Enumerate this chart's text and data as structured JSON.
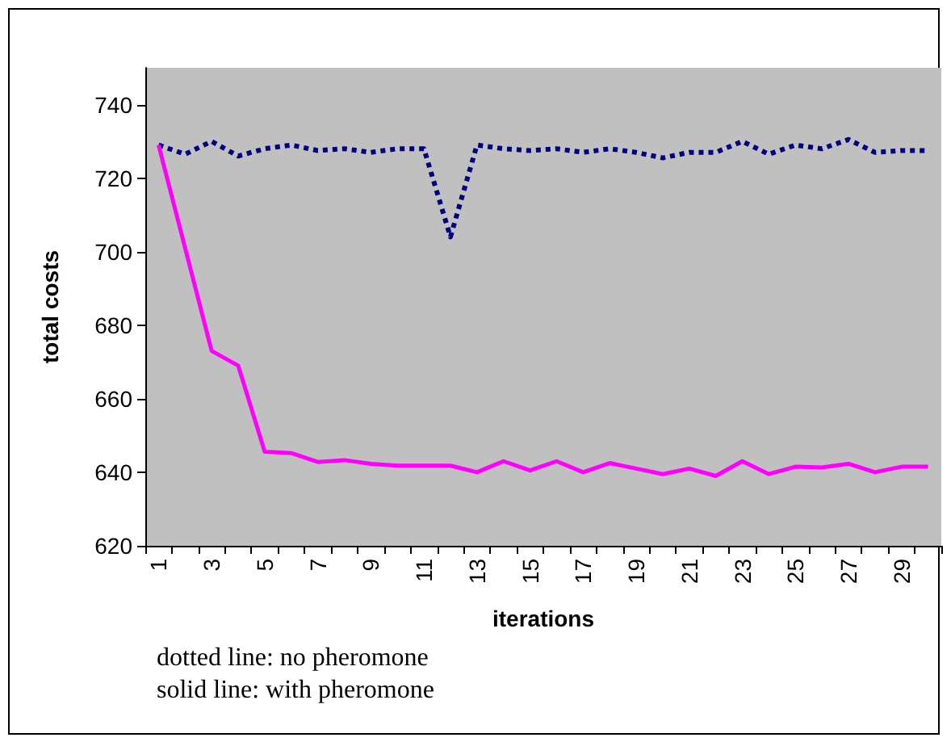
{
  "chart_data": {
    "type": "line",
    "xlabel": "iterations",
    "ylabel": "total costs",
    "categories": [
      "1",
      null,
      "3",
      null,
      "5",
      null,
      "7",
      null,
      "9",
      null,
      "11",
      null,
      "13",
      null,
      "15",
      null,
      "17",
      null,
      "19",
      null,
      "21",
      null,
      "23",
      null,
      "25",
      null,
      "27",
      null,
      "29",
      null
    ],
    "series": [
      {
        "color": "#000080",
        "line_style": "dotted",
        "values": [
          729,
          726.5,
          730,
          726,
          728,
          729,
          727.5,
          728,
          727,
          728,
          728,
          704,
          729,
          728,
          727.5,
          728,
          727,
          728,
          727,
          725.5,
          727,
          727,
          730,
          726.5,
          729,
          728,
          730.5,
          727,
          727.5,
          727.5
        ]
      },
      {
        "color": "#ff00ff",
        "line_style": "solid",
        "values": [
          729,
          701,
          673,
          669,
          645.6,
          645.2,
          642.8,
          643.3,
          642.3,
          641.8,
          641.8,
          641.8,
          640,
          643,
          640.5,
          643,
          640,
          642.5,
          641,
          639.5,
          641,
          639,
          643,
          639.5,
          641.5,
          641.3,
          642.3,
          640,
          641.5,
          641.5
        ]
      }
    ],
    "ylim": [
      620,
      750
    ],
    "yticks": [
      620,
      640,
      660,
      680,
      700,
      720,
      740
    ],
    "grid": false,
    "marker": "none",
    "annotations": [
      "dotted line: no pheromone",
      "solid line: with pheromone"
    ]
  }
}
